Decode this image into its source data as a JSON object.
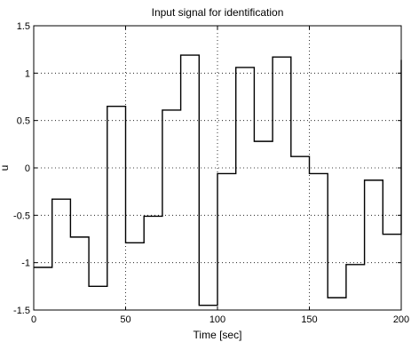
{
  "chart_data": {
    "type": "line",
    "title": "Input signal for identification",
    "xlabel": "Time [sec]",
    "ylabel": "u",
    "xlim": [
      0,
      200
    ],
    "ylim": [
      -1.5,
      1.5
    ],
    "xticks": [
      0,
      50,
      100,
      150,
      200
    ],
    "xtick_labels": [
      "0",
      "50",
      "100",
      "150",
      "200"
    ],
    "yticks": [
      -1.5,
      -1,
      -0.5,
      0,
      0.5,
      1,
      1.5
    ],
    "ytick_labels": [
      "-1.5",
      "-1",
      "-0.5",
      "0",
      "0.5",
      "1",
      "1.5"
    ],
    "grid": true,
    "series": [
      {
        "color": "#000000",
        "step": true,
        "x": [
          0,
          10,
          20,
          30,
          40,
          50,
          60,
          70,
          80,
          90,
          100,
          110,
          120,
          130,
          140,
          150,
          160,
          170,
          180,
          190,
          200
        ],
        "y": [
          -1.05,
          -0.33,
          -0.73,
          -1.25,
          0.65,
          -0.79,
          -0.51,
          0.61,
          1.19,
          -1.45,
          -0.06,
          1.06,
          0.28,
          1.17,
          0.12,
          -0.06,
          -1.37,
          -1.02,
          -0.13,
          -0.7,
          1.14
        ]
      }
    ]
  }
}
